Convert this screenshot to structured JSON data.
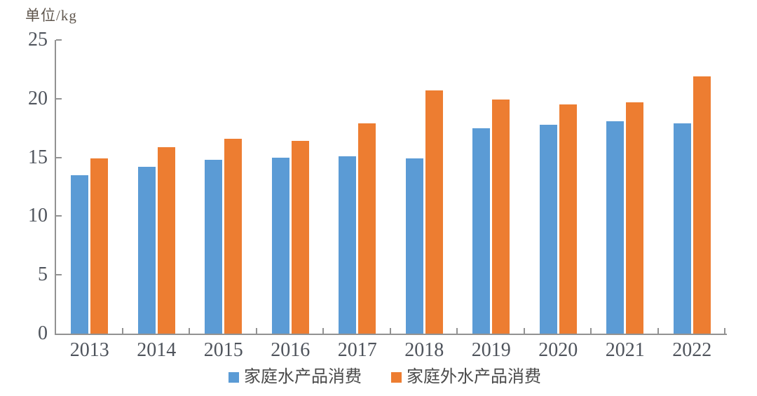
{
  "chart_data": {
    "type": "bar",
    "title": "",
    "unit_label": "单位/kg",
    "xlabel": "",
    "ylabel": "单位/kg",
    "ylim": [
      0,
      25
    ],
    "yticks": [
      0,
      5,
      10,
      15,
      20,
      25
    ],
    "grid": false,
    "legend_position": "bottom",
    "categories": [
      "2013",
      "2014",
      "2015",
      "2016",
      "2017",
      "2018",
      "2019",
      "2020",
      "2021",
      "2022"
    ],
    "series": [
      {
        "name": "家庭水产品消费",
        "color": "#5b9bd5",
        "values": [
          13.5,
          14.2,
          14.8,
          15.0,
          15.1,
          14.9,
          17.5,
          17.8,
          18.1,
          17.9
        ]
      },
      {
        "name": "家庭外水产品消费",
        "color": "#ed7d31",
        "values": [
          14.9,
          15.9,
          16.6,
          16.4,
          17.9,
          20.7,
          19.9,
          19.5,
          19.7,
          21.9
        ]
      }
    ]
  }
}
